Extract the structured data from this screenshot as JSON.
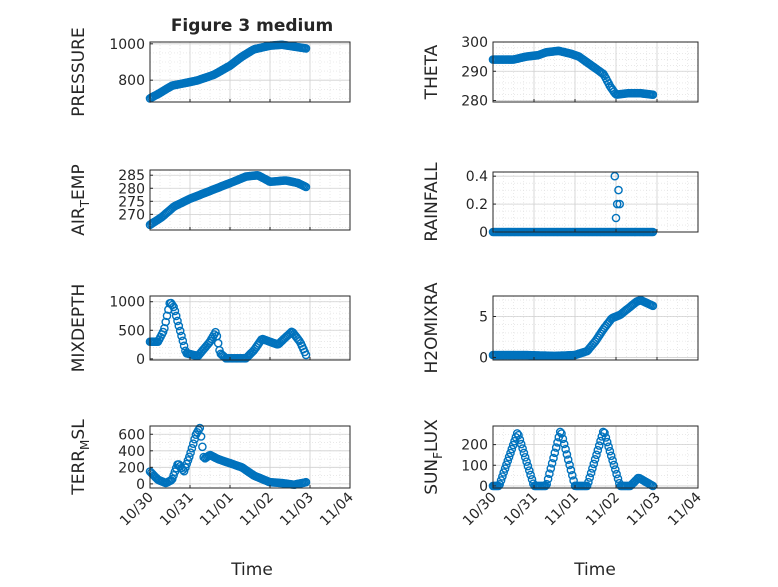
{
  "figure": {
    "title": "Figure 3 medium",
    "xlabel_left": "Time",
    "xlabel_right": "Time",
    "xtick_labels": [
      "10/30",
      "10/31",
      "11/01",
      "11/02",
      "11/03",
      "11/04"
    ]
  },
  "colors": {
    "series": "#0072BD",
    "axis": "#262626",
    "grid": "#DCDCDC"
  },
  "chart_data": [
    {
      "id": "pressure",
      "type": "scatter",
      "title": "Figure 3 medium",
      "ylabel": "PRESSURE",
      "ylim": [
        680,
        1010
      ],
      "xlim": [
        0,
        5
      ],
      "yticks": [
        800,
        1000
      ],
      "yticklabels": [
        "800",
        "1000"
      ],
      "minor_ystep": 50,
      "xticks": [
        0,
        1,
        2,
        3,
        4,
        5
      ],
      "xticklabels": [],
      "show_xlabel": false,
      "series_keypoints": [
        [
          0.0,
          700
        ],
        [
          0.25,
          730
        ],
        [
          0.55,
          770
        ],
        [
          1.0,
          790
        ],
        [
          1.2,
          800
        ],
        [
          1.4,
          815
        ],
        [
          1.6,
          830
        ],
        [
          2.0,
          880
        ],
        [
          2.3,
          930
        ],
        [
          2.6,
          970
        ],
        [
          3.0,
          990
        ],
        [
          3.3,
          995
        ],
        [
          3.6,
          985
        ],
        [
          3.9,
          975
        ]
      ],
      "x_range": [
        0.0,
        3.9
      ],
      "n_points": 120
    },
    {
      "id": "theta",
      "type": "scatter",
      "ylabel": "THETA",
      "ylim": [
        279.5,
        300
      ],
      "xlim": [
        0,
        5
      ],
      "yticks": [
        280,
        290,
        300
      ],
      "yticklabels": [
        "280",
        "290",
        "300"
      ],
      "minor_ystep": 2,
      "xticks": [
        0,
        1,
        2,
        3,
        4,
        5
      ],
      "xticklabels": [],
      "show_xlabel": false,
      "series_keypoints": [
        [
          0.0,
          294
        ],
        [
          0.5,
          294
        ],
        [
          0.8,
          295
        ],
        [
          1.1,
          295.5
        ],
        [
          1.3,
          296.5
        ],
        [
          1.6,
          297
        ],
        [
          1.9,
          296
        ],
        [
          2.1,
          295
        ],
        [
          2.4,
          292
        ],
        [
          2.7,
          289
        ],
        [
          2.85,
          285
        ],
        [
          3.0,
          282
        ],
        [
          3.3,
          282.5
        ],
        [
          3.6,
          282.5
        ],
        [
          3.9,
          282
        ]
      ],
      "x_range": [
        0.0,
        3.9
      ],
      "n_points": 120
    },
    {
      "id": "air_temp",
      "type": "scatter",
      "ylabel": "AIR_TEMP",
      "ylabel_main": "AIR",
      "ylabel_sub": "T",
      "ylabel_rest": "EMP",
      "ylim": [
        264,
        287
      ],
      "xlim": [
        0,
        5
      ],
      "yticks": [
        270,
        275,
        280,
        285
      ],
      "yticklabels": [
        "270",
        "275",
        "280",
        "285"
      ],
      "minor_ystep": 5,
      "xticks": [
        0,
        1,
        2,
        3,
        4,
        5
      ],
      "xticklabels": [],
      "show_xlabel": false,
      "series_keypoints": [
        [
          0.0,
          266
        ],
        [
          0.3,
          269
        ],
        [
          0.6,
          273
        ],
        [
          1.0,
          276
        ],
        [
          1.5,
          279
        ],
        [
          2.0,
          282
        ],
        [
          2.4,
          284.5
        ],
        [
          2.7,
          285
        ],
        [
          3.0,
          282.5
        ],
        [
          3.4,
          283
        ],
        [
          3.7,
          282
        ],
        [
          3.9,
          280.5
        ]
      ],
      "x_range": [
        0.0,
        3.9
      ],
      "n_points": 120
    },
    {
      "id": "rainfall",
      "type": "scatter",
      "ylabel": "RAINFALL",
      "ylim": [
        0,
        0.43
      ],
      "xlim": [
        0,
        5
      ],
      "yticks": [
        0,
        0.2,
        0.4
      ],
      "yticklabels": [
        "0",
        "0.2",
        "0.4"
      ],
      "minor_ystep": 0.05,
      "xticks": [
        0,
        1,
        2,
        3,
        4,
        5
      ],
      "xticklabels": [],
      "show_xlabel": false,
      "baseline_range": [
        0.0,
        3.9
      ],
      "baseline_value": 0,
      "n_points": 120,
      "spikes": [
        [
          2.97,
          0.4
        ],
        [
          3.0,
          0.1
        ],
        [
          3.03,
          0.2
        ],
        [
          3.06,
          0.3
        ],
        [
          3.09,
          0.2
        ]
      ]
    },
    {
      "id": "mixdepth",
      "type": "scatter",
      "ylabel": "MIXDEPTH",
      "ylim": [
        -20,
        1100
      ],
      "xlim": [
        0,
        5
      ],
      "yticks": [
        0,
        500,
        1000
      ],
      "yticklabels": [
        "0",
        "500",
        "1000"
      ],
      "minor_ystep": 100,
      "xticks": [
        0,
        1,
        2,
        3,
        4,
        5
      ],
      "xticklabels": [],
      "show_xlabel": false,
      "series_keypoints": [
        [
          0.0,
          300
        ],
        [
          0.2,
          300
        ],
        [
          0.35,
          500
        ],
        [
          0.5,
          1000
        ],
        [
          0.6,
          900
        ],
        [
          0.75,
          500
        ],
        [
          0.9,
          100
        ],
        [
          1.2,
          50
        ],
        [
          1.5,
          300
        ],
        [
          1.65,
          480
        ],
        [
          1.75,
          100
        ],
        [
          1.9,
          10
        ],
        [
          2.4,
          10
        ],
        [
          2.6,
          150
        ],
        [
          2.8,
          350
        ],
        [
          3.0,
          300
        ],
        [
          3.2,
          250
        ],
        [
          3.35,
          350
        ],
        [
          3.55,
          480
        ],
        [
          3.75,
          300
        ],
        [
          3.9,
          70
        ]
      ],
      "x_range": [
        0.0,
        3.9
      ],
      "n_points": 120
    },
    {
      "id": "h2omixra",
      "type": "scatter",
      "ylabel": "H2OMIXRA",
      "ylim": [
        -0.3,
        7.5
      ],
      "xlim": [
        0,
        5
      ],
      "yticks": [
        0,
        5
      ],
      "yticklabels": [
        "0",
        "5"
      ],
      "minor_ystep": 1,
      "xticks": [
        0,
        1,
        2,
        3,
        4,
        5
      ],
      "xticklabels": [],
      "show_xlabel": false,
      "series_keypoints": [
        [
          0.0,
          0.3
        ],
        [
          0.8,
          0.3
        ],
        [
          1.5,
          0.2
        ],
        [
          2.0,
          0.3
        ],
        [
          2.3,
          0.8
        ],
        [
          2.5,
          2.0
        ],
        [
          2.7,
          3.5
        ],
        [
          2.9,
          4.8
        ],
        [
          3.1,
          5.2
        ],
        [
          3.3,
          6.0
        ],
        [
          3.5,
          6.8
        ],
        [
          3.6,
          7.0
        ],
        [
          3.9,
          6.3
        ]
      ],
      "x_range": [
        0.0,
        3.9
      ],
      "n_points": 120
    },
    {
      "id": "terr_msl",
      "type": "scatter",
      "ylabel": "TERR_MSL",
      "ylabel_main": "TERR",
      "ylabel_sub": "M",
      "ylabel_rest": "SL",
      "ylim": [
        -50,
        700
      ],
      "xlim": [
        0,
        5
      ],
      "yticks": [
        0,
        200,
        400,
        600
      ],
      "yticklabels": [
        "0",
        "200",
        "400",
        "600"
      ],
      "minor_ystep": 100,
      "xticks": [
        0,
        1,
        2,
        3,
        4,
        5
      ],
      "xticklabels": [
        "10/30",
        "10/31",
        "11/01",
        "11/02",
        "11/03",
        "11/04"
      ],
      "show_xlabel": true,
      "series_keypoints": [
        [
          0.0,
          150
        ],
        [
          0.2,
          50
        ],
        [
          0.4,
          10
        ],
        [
          0.55,
          50
        ],
        [
          0.7,
          250
        ],
        [
          0.85,
          150
        ],
        [
          1.0,
          350
        ],
        [
          1.15,
          600
        ],
        [
          1.25,
          680
        ],
        [
          1.35,
          300
        ],
        [
          1.5,
          350
        ],
        [
          1.7,
          300
        ],
        [
          2.0,
          250
        ],
        [
          2.3,
          200
        ],
        [
          2.6,
          100
        ],
        [
          3.0,
          20
        ],
        [
          3.3,
          10
        ],
        [
          3.6,
          -10
        ],
        [
          3.9,
          20
        ]
      ],
      "x_range": [
        0.0,
        3.9
      ],
      "n_points": 120
    },
    {
      "id": "sun_flux",
      "type": "scatter",
      "ylabel": "SUN_FLUX",
      "ylabel_main": "SUN",
      "ylabel_sub": "F",
      "ylabel_rest": "LUX",
      "ylim": [
        -10,
        290
      ],
      "xlim": [
        0,
        5
      ],
      "yticks": [
        0,
        100,
        200
      ],
      "yticklabels": [
        "0",
        "100",
        "200"
      ],
      "minor_ystep": 50,
      "xticks": [
        0,
        1,
        2,
        3,
        4,
        5
      ],
      "xticklabels": [
        "10/30",
        "10/31",
        "11/01",
        "11/02",
        "11/03",
        "11/04"
      ],
      "show_xlabel": true,
      "series_keypoints": [
        [
          0.0,
          0
        ],
        [
          0.15,
          0
        ],
        [
          0.6,
          260
        ],
        [
          1.0,
          0
        ],
        [
          1.3,
          0
        ],
        [
          1.65,
          270
        ],
        [
          2.0,
          0
        ],
        [
          2.3,
          0
        ],
        [
          2.7,
          270
        ],
        [
          3.1,
          0
        ],
        [
          3.35,
          0
        ],
        [
          3.55,
          40
        ],
        [
          3.9,
          0
        ]
      ],
      "x_range": [
        0.0,
        3.9
      ],
      "n_points": 120
    }
  ]
}
